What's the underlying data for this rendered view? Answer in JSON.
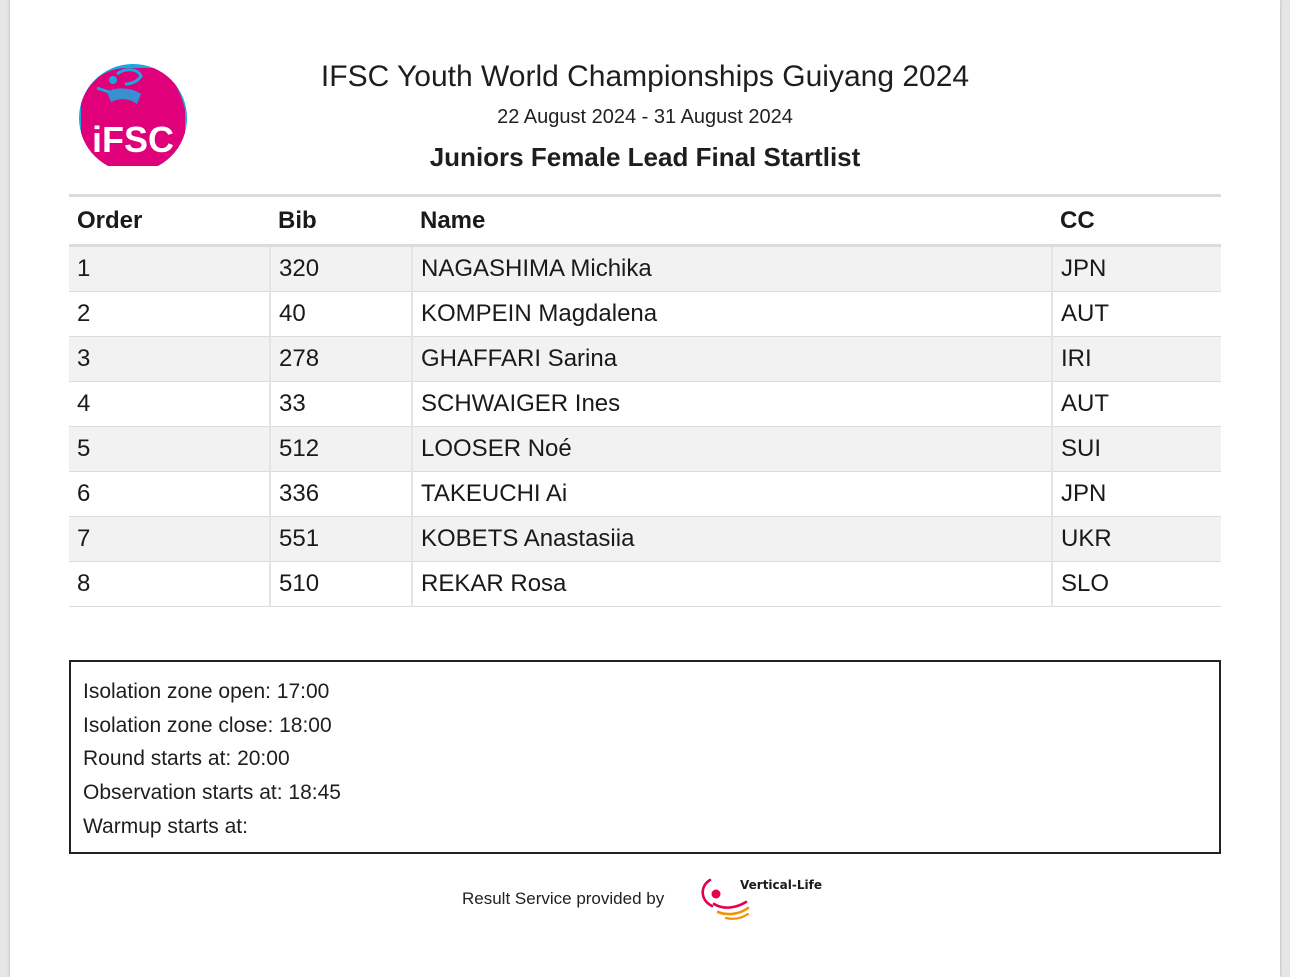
{
  "header": {
    "logo_text": "iFSC",
    "title": "IFSC Youth World Championships Guiyang 2024",
    "dates": "22 August 2024 - 31 August 2024",
    "subtitle": "Juniors Female Lead Final Startlist"
  },
  "table": {
    "columns": [
      "Order",
      "Bib",
      "Name",
      "CC"
    ],
    "rows": [
      {
        "order": "1",
        "bib": "320",
        "name": "NAGASHIMA Michika",
        "cc": "JPN"
      },
      {
        "order": "2",
        "bib": "40",
        "name": "KOMPEIN Magdalena",
        "cc": "AUT"
      },
      {
        "order": "3",
        "bib": "278",
        "name": "GHAFFARI Sarina",
        "cc": "IRI"
      },
      {
        "order": "4",
        "bib": "33",
        "name": "SCHWAIGER Ines",
        "cc": "AUT"
      },
      {
        "order": "5",
        "bib": "512",
        "name": "LOOSER Noé",
        "cc": "SUI"
      },
      {
        "order": "6",
        "bib": "336",
        "name": "TAKEUCHI Ai",
        "cc": "JPN"
      },
      {
        "order": "7",
        "bib": "551",
        "name": "KOBETS Anastasiia",
        "cc": "UKR"
      },
      {
        "order": "8",
        "bib": "510",
        "name": "REKAR Rosa",
        "cc": "SLO"
      }
    ]
  },
  "schedule": [
    "Isolation zone open: 17:00",
    "Isolation zone close: 18:00",
    "Round starts at: 20:00",
    "Observation starts at: 18:45",
    "Warmup starts at:"
  ],
  "footer": {
    "text": "Result Service provided by",
    "partner_logo_text": "Vertical-Life"
  },
  "colors": {
    "ifsc_pink": "#e0007a",
    "ifsc_blue": "#1aa8e0",
    "vertical_life_red": "#e3004f",
    "vertical_life_orange": "#f39200"
  }
}
